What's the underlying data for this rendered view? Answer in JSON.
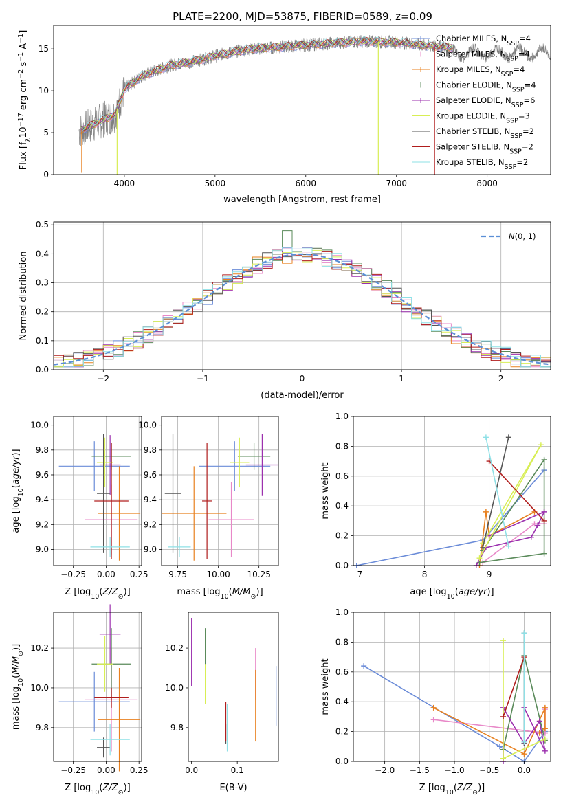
{
  "figure_title": "PLATE=2200, MJD=53875, FIBERID=0589, z=0.09",
  "colors": {
    "Chabrier MILES": "#6a8bd8",
    "Salpeter MILES": "#e888c8",
    "Kroupa MILES": "#e8801f",
    "Chabrier ELODIE": "#5a8a5a",
    "Salpeter ELODIE": "#9b2fae",
    "Kroupa ELODIE": "#d8ee55",
    "Chabrier STELIB": "#555555",
    "Salpeter STELIB": "#b01d1d",
    "Kroupa STELIB": "#8ee0e6"
  },
  "chart_data": [
    {
      "id": "spectrum",
      "type": "line",
      "xlabel": "wavelength [Angstrom, rest frame]",
      "ylabel": "Flux [f_λ 10^-17 erg cm^-2 s^-1 A^-1]",
      "xlim": [
        3220,
        8700
      ],
      "ylim": [
        0,
        17.8
      ],
      "xticks": [
        4000,
        5000,
        6000,
        7000,
        8000
      ],
      "yticks": [
        0,
        5,
        10,
        15
      ],
      "grid": false,
      "legend_position": "right",
      "data_series": {
        "name": "data",
        "color": "#808080"
      },
      "legend": [
        {
          "label": "Chabrier MILES, N",
          "sub": "SSP",
          "value": "=4"
        },
        {
          "label": "Salpeter MILES, N",
          "sub": "SSP",
          "value": "=4"
        },
        {
          "label": "Kroupa MILES, N",
          "sub": "SSP",
          "value": "=4"
        },
        {
          "label": "Chabrier ELODIE, N",
          "sub": "SSP",
          "value": "=4"
        },
        {
          "label": "Salpeter ELODIE, N",
          "sub": "SSP",
          "value": "=6"
        },
        {
          "label": "Kroupa ELODIE, N",
          "sub": "SSP",
          "value": "=3"
        },
        {
          "label": "Chabrier STELIB, N",
          "sub": "SSP",
          "value": "=2"
        },
        {
          "label": "Salpeter STELIB, N",
          "sub": "SSP",
          "value": "=2"
        },
        {
          "label": "Kroupa STELIB, N",
          "sub": "SSP",
          "value": "=2"
        }
      ],
      "continuum": [
        [
          3500,
          5.2
        ],
        [
          3700,
          6.2
        ],
        [
          3900,
          7.2
        ],
        [
          4000,
          10.2
        ],
        [
          4200,
          11.8
        ],
        [
          4500,
          13.0
        ],
        [
          4800,
          13.6
        ],
        [
          5100,
          14.4
        ],
        [
          5400,
          15.0
        ],
        [
          5800,
          15.3
        ],
        [
          6200,
          15.6
        ],
        [
          6600,
          15.9
        ],
        [
          7000,
          15.8
        ],
        [
          7400,
          15.3
        ],
        [
          7600,
          15.2
        ]
      ],
      "spikes": [
        {
          "x": 3530,
          "y": 0.2
        },
        {
          "x": 3920,
          "y": 0.0
        },
        {
          "x": 6800,
          "y": 0.0
        },
        {
          "x": 7420,
          "y": 0.0
        }
      ]
    },
    {
      "id": "residuals",
      "type": "bar",
      "xlabel": "(data-model)/error",
      "ylabel": "Normed distribution",
      "xlim": [
        -2.5,
        2.5
      ],
      "ylim": [
        0,
        0.51
      ],
      "xticks": [
        -2,
        -1,
        0,
        1,
        2
      ],
      "yticks": [
        0.0,
        0.1,
        0.2,
        0.3,
        0.4,
        0.5
      ],
      "grid": true,
      "legend_position": "upper right",
      "legend": [
        {
          "label": "N(0, 1)",
          "style": "dashed",
          "color": "#5b8fd6"
        }
      ],
      "bin_width": 0.1,
      "notable_bin": {
        "x": -0.2,
        "value": 0.48
      }
    },
    {
      "id": "age_vs_Z",
      "type": "scatter",
      "xlabel": "Z [log10(Z/Z⊙)]",
      "ylabel": "age [log10(age/yr)]",
      "xlim": [
        -0.4,
        0.27
      ],
      "ylim": [
        8.87,
        10.07
      ],
      "xticks": [
        -0.25,
        0.0,
        0.25
      ],
      "yticks": [
        9.0,
        9.2,
        9.4,
        9.6,
        9.8,
        10.0
      ],
      "grid": true,
      "points": [
        {
          "model": "Chabrier MILES",
          "x": -0.09,
          "xerr": 0.27,
          "y": 9.67,
          "yerr": 0.2
        },
        {
          "model": "Salpeter MILES",
          "x": 0.04,
          "xerr": 0.2,
          "y": 9.24,
          "yerr": 0.28
        },
        {
          "model": "Kroupa MILES",
          "x": 0.1,
          "xerr": 0.16,
          "y": 9.29,
          "yerr": 0.38
        },
        {
          "model": "Chabrier ELODIE",
          "x": 0.04,
          "xerr": 0.15,
          "y": 9.75,
          "yerr": 0.11
        },
        {
          "model": "Salpeter ELODIE",
          "x": 0.03,
          "xerr": 0.08,
          "y": 9.68,
          "yerr": 0.24
        },
        {
          "model": "Kroupa ELODIE",
          "x": -0.01,
          "xerr": 0.06,
          "y": 9.7,
          "yerr": 0.2
        },
        {
          "model": "Chabrier STELIB",
          "x": -0.02,
          "xerr": 0.05,
          "y": 9.45,
          "yerr": 0.48
        },
        {
          "model": "Salpeter STELIB",
          "x": 0.04,
          "xerr": 0.13,
          "y": 9.39,
          "yerr": 0.47
        },
        {
          "model": "Kroupa STELIB",
          "x": 0.03,
          "xerr": 0.15,
          "y": 9.02,
          "yerr": 0.08
        }
      ]
    },
    {
      "id": "age_vs_mass",
      "type": "scatter",
      "xlabel": "mass [log10(M/M⊙)]",
      "ylabel": "",
      "xlim": [
        9.65,
        10.37
      ],
      "ylim": [
        8.87,
        10.07
      ],
      "xticks": [
        9.75,
        10.0,
        10.25
      ],
      "yticks": [
        9.0,
        9.2,
        9.4,
        9.6,
        9.8,
        10.0
      ],
      "grid": true,
      "points": [
        {
          "model": "Chabrier MILES",
          "x": 10.1,
          "xerr": 0.22,
          "y": 9.67,
          "yerr": 0.2
        },
        {
          "model": "Salpeter MILES",
          "x": 10.08,
          "xerr": 0.14,
          "y": 9.24,
          "yerr": 0.3
        },
        {
          "model": "Kroupa MILES",
          "x": 9.85,
          "xerr": 0.2,
          "y": 9.29,
          "yerr": 0.38
        },
        {
          "model": "Chabrier ELODIE",
          "x": 10.22,
          "xerr": 0.1,
          "y": 9.75,
          "yerr": 0.11
        },
        {
          "model": "Salpeter ELODIE",
          "x": 10.27,
          "xerr": 0.1,
          "y": 9.68,
          "yerr": 0.25
        },
        {
          "model": "Kroupa ELODIE",
          "x": 10.13,
          "xerr": 0.06,
          "y": 9.7,
          "yerr": 0.2
        },
        {
          "model": "Chabrier STELIB",
          "x": 9.72,
          "xerr": 0.05,
          "y": 9.45,
          "yerr": 0.48
        },
        {
          "model": "Salpeter STELIB",
          "x": 9.93,
          "xerr": 0.03,
          "y": 9.39,
          "yerr": 0.47
        },
        {
          "model": "Kroupa STELIB",
          "x": 9.76,
          "xerr": 0.07,
          "y": 9.02,
          "yerr": 0.08
        }
      ]
    },
    {
      "id": "weight_vs_age",
      "type": "line",
      "xlabel": "age [log10(age/yr)]",
      "ylabel": "mass weight",
      "xlim": [
        6.9,
        9.95
      ],
      "ylim": [
        0,
        1.0
      ],
      "xticks": [
        7,
        8,
        9
      ],
      "yticks": [
        0.0,
        0.2,
        0.4,
        0.6,
        0.8,
        1.0
      ],
      "grid": true,
      "series": [
        {
          "model": "Chabrier MILES",
          "x": [
            6.95,
            8.9,
            9.85
          ],
          "y": [
            0.0,
            0.17,
            0.64
          ]
        },
        {
          "model": "Salpeter MILES",
          "x": [
            8.9,
            9.7,
            9.85
          ],
          "y": [
            0.02,
            0.28,
            0.28
          ]
        },
        {
          "model": "Kroupa MILES",
          "x": [
            8.85,
            8.95,
            9.0,
            9.7
          ],
          "y": [
            0.0,
            0.36,
            0.2,
            0.36
          ]
        },
        {
          "model": "Chabrier ELODIE",
          "x": [
            8.85,
            9.85,
            9.85,
            8.9
          ],
          "y": [
            0.02,
            0.08,
            0.71,
            0.1
          ]
        },
        {
          "model": "Salpeter ELODIE",
          "x": [
            8.8,
            8.95,
            9.65,
            9.75,
            9.85,
            9.0
          ],
          "y": [
            0.0,
            0.12,
            0.19,
            0.27,
            0.36,
            0.2
          ]
        },
        {
          "model": "Kroupa ELODIE",
          "x": [
            8.85,
            9.8,
            8.9
          ],
          "y": [
            0.05,
            0.81,
            0.15
          ]
        },
        {
          "model": "Chabrier STELIB",
          "x": [
            8.9,
            9.3
          ],
          "y": [
            0.12,
            0.86
          ]
        },
        {
          "model": "Salpeter STELIB",
          "x": [
            9.0,
            9.85
          ],
          "y": [
            0.7,
            0.3
          ]
        },
        {
          "model": "Kroupa STELIB",
          "x": [
            8.95,
            9.3
          ],
          "y": [
            0.86,
            0.13
          ]
        }
      ]
    },
    {
      "id": "mass_vs_Z",
      "type": "scatter",
      "xlabel": "Z [log10(Z/Z⊙)]",
      "ylabel": "mass [log10(M/M⊙)]",
      "xlim": [
        -0.4,
        0.27
      ],
      "ylim": [
        9.63,
        10.38
      ],
      "xticks": [
        -0.25,
        0.0,
        0.25
      ],
      "yticks": [
        9.8,
        10.0,
        10.2
      ],
      "grid": true,
      "points": [
        {
          "model": "Chabrier MILES",
          "x": -0.09,
          "xerr": 0.27,
          "y": 9.93,
          "yerr": 0.15
        },
        {
          "model": "Salpeter MILES",
          "x": 0.04,
          "xerr": 0.2,
          "y": 9.94,
          "yerr": 0.26
        },
        {
          "model": "Kroupa MILES",
          "x": 0.1,
          "xerr": 0.16,
          "y": 9.84,
          "yerr": 0.26
        },
        {
          "model": "Chabrier ELODIE",
          "x": 0.04,
          "xerr": 0.15,
          "y": 10.12,
          "yerr": 0.18
        },
        {
          "model": "Salpeter ELODIE",
          "x": 0.03,
          "xerr": 0.08,
          "y": 10.27,
          "yerr": 0.15
        },
        {
          "model": "Kroupa ELODIE",
          "x": -0.01,
          "xerr": 0.06,
          "y": 10.12,
          "yerr": 0.14
        },
        {
          "model": "Chabrier STELIB",
          "x": -0.02,
          "xerr": 0.05,
          "y": 9.7,
          "yerr": 0.05
        },
        {
          "model": "Salpeter STELIB",
          "x": 0.04,
          "xerr": 0.13,
          "y": 9.95,
          "yerr": 0.05
        },
        {
          "model": "Kroupa STELIB",
          "x": 0.03,
          "xerr": 0.15,
          "y": 9.74,
          "yerr": 0.08
        }
      ]
    },
    {
      "id": "mass_vs_ebv",
      "type": "scatter",
      "xlabel": "E(B-V)",
      "ylabel": "",
      "xlim": [
        -0.007,
        0.19
      ],
      "ylim": [
        9.63,
        10.38
      ],
      "xticks": [
        0.0,
        0.1
      ],
      "yticks": [
        9.8,
        10.0,
        10.2
      ],
      "grid": false,
      "points": [
        {
          "model": "Chabrier MILES",
          "x": 0.185,
          "xerr": 0,
          "y": 9.96,
          "yerr": 0.15
        },
        {
          "model": "Salpeter MILES",
          "x": 0.14,
          "xerr": 0,
          "y": 10.07,
          "yerr": 0.13
        },
        {
          "model": "Kroupa MILES",
          "x": 0.14,
          "xerr": 0,
          "y": 9.91,
          "yerr": 0.18
        },
        {
          "model": "Chabrier ELODIE",
          "x": 0.03,
          "xerr": 0,
          "y": 10.14,
          "yerr": 0.16
        },
        {
          "model": "Salpeter ELODIE",
          "x": 0.0,
          "xerr": 0,
          "y": 10.18,
          "yerr": 0.17
        },
        {
          "model": "Kroupa ELODIE",
          "x": 0.03,
          "xerr": 0,
          "y": 10.02,
          "yerr": 0.1
        },
        {
          "model": "Chabrier STELIB",
          "x": 0.075,
          "xerr": 0,
          "y": 9.77,
          "yerr": 0.05
        },
        {
          "model": "Salpeter STELIB",
          "x": 0.075,
          "xerr": 0,
          "y": 9.83,
          "yerr": 0.1
        },
        {
          "model": "Kroupa STELIB",
          "x": 0.078,
          "xerr": 0,
          "y": 9.8,
          "yerr": 0.12
        }
      ]
    },
    {
      "id": "weight_vs_Z",
      "type": "line",
      "xlabel": "Z [log10(Z/Z⊙)]",
      "ylabel": "mass weight",
      "xlim": [
        -2.45,
        0.38
      ],
      "ylim": [
        0,
        1.0
      ],
      "xticks": [
        -2.0,
        -1.5,
        -1.0,
        -0.5,
        0.0
      ],
      "yticks": [
        0.0,
        0.2,
        0.4,
        0.6,
        0.8,
        1.0
      ],
      "grid": true,
      "series": [
        {
          "model": "Chabrier MILES",
          "x": [
            -2.3,
            -0.35,
            0.0,
            0.3
          ],
          "y": [
            0.64,
            0.1,
            0.0,
            0.2
          ]
        },
        {
          "model": "Salpeter MILES",
          "x": [
            -1.3,
            0.3,
            0.3
          ],
          "y": [
            0.28,
            0.19,
            0.35
          ]
        },
        {
          "model": "Kroupa MILES",
          "x": [
            -1.3,
            0.0,
            0.3,
            0.3,
            0.22
          ],
          "y": [
            0.36,
            0.05,
            0.36,
            0.22,
            0.19
          ]
        },
        {
          "model": "Chabrier ELODIE",
          "x": [
            -0.3,
            0.0,
            0.3
          ],
          "y": [
            0.08,
            0.71,
            0.14
          ]
        },
        {
          "model": "Salpeter ELODIE",
          "x": [
            -0.3,
            -0.3,
            0.0,
            0.22,
            0.3,
            0.0
          ],
          "y": [
            0.0,
            0.36,
            0.12,
            0.27,
            0.07,
            0.36
          ]
        },
        {
          "model": "Kroupa ELODIE",
          "x": [
            -0.3,
            -0.3,
            0.3
          ],
          "y": [
            0.81,
            0.02,
            0.15
          ]
        },
        {
          "model": "Chabrier STELIB",
          "x": [
            0.0,
            0.0
          ],
          "y": [
            0.12,
            0.86
          ]
        },
        {
          "model": "Salpeter STELIB",
          "x": [
            -0.3,
            0.0
          ],
          "y": [
            0.3,
            0.7
          ]
        },
        {
          "model": "Kroupa STELIB",
          "x": [
            0.0,
            0.0
          ],
          "y": [
            0.86,
            0.13
          ]
        }
      ]
    }
  ]
}
